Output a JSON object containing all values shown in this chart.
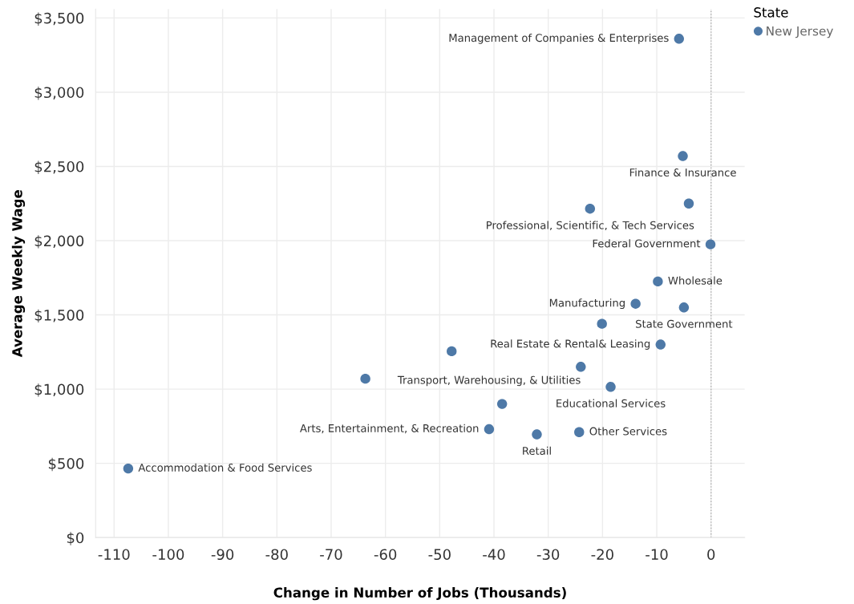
{
  "chart_data": {
    "type": "scatter",
    "xlabel": "Change in Number of Jobs (Thousands)",
    "ylabel": "Average Weekly Wage",
    "legend_title": "State",
    "legend": "top right",
    "grid": true,
    "marker": "circle",
    "xlim": [
      -113.4,
      6.2
    ],
    "ylim": [
      0,
      3560
    ],
    "xticks": [
      -110,
      -100,
      -90,
      -80,
      -70,
      -60,
      -50,
      -40,
      -30,
      -20,
      -10,
      0
    ],
    "yticks": [
      {
        "value": 0,
        "label": "$0"
      },
      {
        "value": 500,
        "label": "$500"
      },
      {
        "value": 1000,
        "label": "$1,000"
      },
      {
        "value": 1500,
        "label": "$1,500"
      },
      {
        "value": 2000,
        "label": "$2,000"
      },
      {
        "value": 2500,
        "label": "$2,500"
      },
      {
        "value": 3000,
        "label": "$3,000"
      },
      {
        "value": 3500,
        "label": "$3,500"
      }
    ],
    "series": [
      {
        "name": "New Jersey",
        "color": "#4e79a7",
        "x": [
          -5.9,
          -5.2,
          -4.1,
          -22.3,
          -0.1,
          -9.8,
          -13.9,
          -5.0,
          -20.1,
          -9.3,
          -47.8,
          -24.0,
          -18.5,
          -38.5,
          -40.9,
          -32.1,
          -24.3,
          -63.7,
          -107.4
        ],
        "values": [
          3360,
          2570,
          2250,
          2215,
          1975,
          1725,
          1575,
          1550,
          1440,
          1300,
          1255,
          1150,
          1015,
          900,
          730,
          695,
          710,
          1070,
          465
        ]
      }
    ],
    "ref_lines": [
      {
        "axis": "x",
        "value": 0,
        "color": "#b0b0b0",
        "line_style": "dotted"
      }
    ],
    "annotations": [
      {
        "text": "Management of Companies & Enterprises",
        "x": -5.9,
        "y": 3360
      },
      {
        "text": "Finance & Insurance",
        "x": -5.2,
        "y": 2570
      },
      {
        "text": "Professional, Scientific, & Tech Services",
        "x": -22.3,
        "y": 2215
      },
      {
        "text": "Federal Government",
        "x": -0.1,
        "y": 1975
      },
      {
        "text": "Wholesale",
        "x": -9.8,
        "y": 1725
      },
      {
        "text": "Manufacturing",
        "x": -13.9,
        "y": 1575
      },
      {
        "text": "State Government",
        "x": -5.0,
        "y": 1550
      },
      {
        "text": "Real Estate & Rental& Leasing",
        "x": -9.3,
        "y": 1300
      },
      {
        "text": "Transport, Warehousing, & Utilities",
        "x": -24.0,
        "y": 1150
      },
      {
        "text": "Educational Services",
        "x": -18.5,
        "y": 1015
      },
      {
        "text": "Arts, Entertainment, & Recreation",
        "x": -40.9,
        "y": 730
      },
      {
        "text": "Retail",
        "x": -32.1,
        "y": 695
      },
      {
        "text": "Other Services",
        "x": -24.3,
        "y": 710
      },
      {
        "text": "Accommodation & Food Services",
        "x": -107.4,
        "y": 465
      }
    ]
  }
}
